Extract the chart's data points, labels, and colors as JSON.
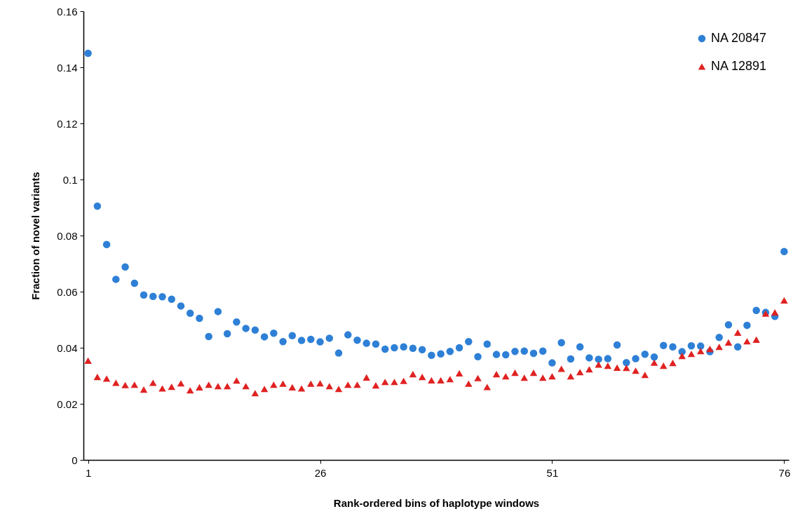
{
  "chart_data": {
    "type": "scatter",
    "xlabel": "Rank-ordered bins of haplotype windows",
    "ylabel": "Fraction of novel variants",
    "x": [
      1,
      2,
      3,
      4,
      5,
      6,
      7,
      8,
      9,
      10,
      11,
      12,
      13,
      14,
      15,
      16,
      17,
      18,
      19,
      20,
      21,
      22,
      23,
      24,
      25,
      26,
      27,
      28,
      29,
      30,
      31,
      32,
      33,
      34,
      35,
      36,
      37,
      38,
      39,
      40,
      41,
      42,
      43,
      44,
      45,
      46,
      47,
      48,
      49,
      50,
      51,
      52,
      53,
      54,
      55,
      56,
      57,
      58,
      59,
      60,
      61,
      62,
      63,
      64,
      65,
      66,
      67,
      68,
      69,
      70,
      71,
      72,
      73,
      74,
      75,
      76
    ],
    "series": [
      {
        "name": "NA 20847",
        "color": "#2e80d6",
        "marker": "circle",
        "values": [
          0.145,
          0.0905,
          0.0768,
          0.0644,
          0.0688,
          0.063,
          0.0588,
          0.0583,
          0.0582,
          0.0573,
          0.0549,
          0.0523,
          0.0505,
          0.044,
          0.0529,
          0.045,
          0.0492,
          0.0469,
          0.0463,
          0.0439,
          0.0452,
          0.0422,
          0.0443,
          0.0426,
          0.043,
          0.0421,
          0.0434,
          0.0381,
          0.0446,
          0.0427,
          0.0416,
          0.0413,
          0.0395,
          0.04,
          0.0403,
          0.0398,
          0.0393,
          0.0373,
          0.0378,
          0.0387,
          0.04,
          0.0422,
          0.0368,
          0.0413,
          0.0376,
          0.0375,
          0.0387,
          0.0388,
          0.038,
          0.0388,
          0.0346,
          0.0418,
          0.036,
          0.0403,
          0.0364,
          0.0359,
          0.0361,
          0.041,
          0.0347,
          0.0361,
          0.0377,
          0.0367,
          0.0408,
          0.0403,
          0.0386,
          0.0407,
          0.0406,
          0.0386,
          0.0437,
          0.0482,
          0.0403,
          0.048,
          0.0533,
          0.0526,
          0.0512,
          0.0743
        ]
      },
      {
        "name": "NA 12891",
        "color": "#e02222",
        "marker": "triangle",
        "values": [
          0.0354,
          0.0296,
          0.029,
          0.0275,
          0.0267,
          0.0268,
          0.0251,
          0.0275,
          0.0255,
          0.0261,
          0.0273,
          0.0248,
          0.0259,
          0.0268,
          0.0263,
          0.0263,
          0.0283,
          0.0263,
          0.0238,
          0.0253,
          0.0268,
          0.0272,
          0.0259,
          0.0255,
          0.0272,
          0.0273,
          0.0263,
          0.0253,
          0.0268,
          0.0268,
          0.0294,
          0.0266,
          0.0278,
          0.0278,
          0.0282,
          0.0306,
          0.0296,
          0.0284,
          0.0284,
          0.0288,
          0.0309,
          0.0272,
          0.0292,
          0.026,
          0.0306,
          0.0298,
          0.0311,
          0.0293,
          0.0311,
          0.0293,
          0.0298,
          0.0325,
          0.0298,
          0.0313,
          0.0323,
          0.034,
          0.0336,
          0.0329,
          0.0328,
          0.0318,
          0.0303,
          0.0347,
          0.0336,
          0.0346,
          0.0371,
          0.0378,
          0.0388,
          0.0396,
          0.0403,
          0.0419,
          0.0454,
          0.0423,
          0.0429,
          0.0522,
          0.0526,
          0.0569
        ]
      }
    ],
    "xlim": [
      0.5,
      76.5
    ],
    "xticks": [
      1,
      26,
      51,
      76
    ],
    "ylim": [
      0,
      0.16
    ],
    "yticks": [
      0,
      0.02,
      0.04,
      0.06,
      0.08,
      0.1,
      0.12,
      0.14,
      0.16
    ],
    "grid": false,
    "legend": "top right"
  }
}
